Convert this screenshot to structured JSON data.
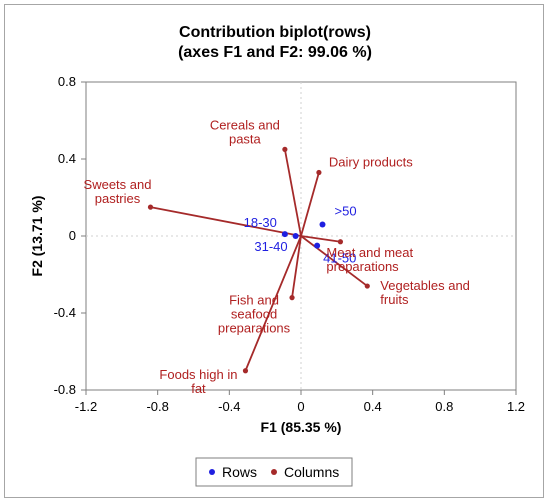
{
  "chart_data": {
    "type": "scatter",
    "title": [
      "Contribution biplot(rows)",
      "(axes F1 and F2: 99.06 %)"
    ],
    "xlabel": "F1 (85.35 %)",
    "ylabel": "F2 (13.71 %)",
    "xlim": [
      -1.2,
      1.2
    ],
    "ylim": [
      -0.8,
      0.8
    ],
    "xticks": [
      -1.2,
      -0.8,
      -0.4,
      0,
      0.4,
      0.8,
      1.2
    ],
    "yticks": [
      -0.8,
      -0.4,
      0,
      0.4,
      0.8
    ],
    "xtick_labels": [
      "-1.2",
      "-0.8",
      "-0.4",
      "0",
      "0.4",
      "0.8",
      "1.2"
    ],
    "ytick_labels": [
      "-0.8",
      "-0.4",
      "0",
      "0.4",
      "0.8"
    ],
    "grid": false,
    "legend_position": "bottom",
    "series": [
      {
        "name": "Rows",
        "color": "#1f1fe0",
        "points": [
          {
            "label": "18-30",
            "x": -0.09,
            "y": 0.01
          },
          {
            "label": "31-40",
            "x": -0.03,
            "y": 0.0
          },
          {
            "label": ">50",
            "x": 0.12,
            "y": 0.06
          },
          {
            "label": "41-50",
            "x": 0.09,
            "y": -0.05
          }
        ]
      },
      {
        "name": "Columns",
        "color": "#a52a2a",
        "points": [
          {
            "label": [
              "Cereals and",
              "pasta"
            ],
            "x": -0.09,
            "y": 0.45
          },
          {
            "label": [
              "Dairy products"
            ],
            "x": 0.1,
            "y": 0.33
          },
          {
            "label": [
              "Sweets and",
              "pastries"
            ],
            "x": -0.84,
            "y": 0.15
          },
          {
            "label": [
              "Meat and meat",
              "preparations"
            ],
            "x": 0.22,
            "y": -0.03
          },
          {
            "label": [
              "Vegetables and",
              "fruits"
            ],
            "x": 0.37,
            "y": -0.26
          },
          {
            "label": [
              "Fish and",
              "seafood",
              "preparations"
            ],
            "x": -0.05,
            "y": -0.32
          },
          {
            "label": [
              "Foods high in",
              "fat"
            ],
            "x": -0.31,
            "y": -0.7
          }
        ]
      }
    ]
  }
}
